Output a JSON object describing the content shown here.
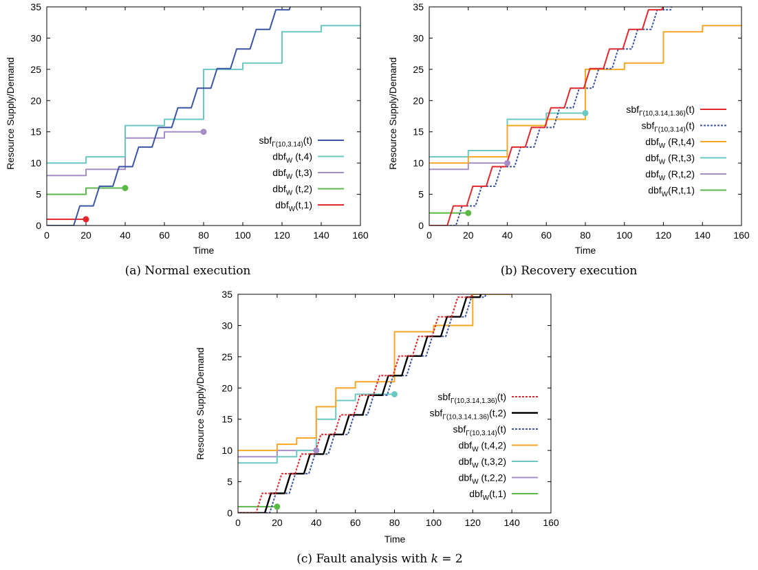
{
  "colors": {
    "red": "#e3262b",
    "blue": "#3a53a4",
    "cyan": "#69c9c0",
    "purple": "#a58dc5",
    "green": "#5ab947",
    "orange": "#f5a623",
    "black": "#000000"
  },
  "chart_data": [
    {
      "id": "a",
      "type": "line",
      "title": "",
      "caption": "(a) Normal execution",
      "xlabel": "Time",
      "ylabel": "Resource Supply/Demand",
      "xlim": [
        0,
        160
      ],
      "ylim": [
        0,
        35
      ],
      "xticks": [
        "0",
        "20",
        "40",
        "60",
        "80",
        "100",
        "120",
        "140",
        "160"
      ],
      "yticks": [
        "0",
        "5",
        "10",
        "15",
        "20",
        "25",
        "30",
        "35"
      ],
      "legend_position": "center-right",
      "series": [
        {
          "key": "sbf",
          "label": {
            "main": "sbf",
            "sub": "Γ(10,3.14)",
            "suffix": "(t)"
          },
          "color": "#3a53a4",
          "style": "solid",
          "width": 2,
          "kind": "sbf",
          "params": {
            "P": 10,
            "Q": 3.14,
            "d": 0
          }
        },
        {
          "key": "dbf4",
          "label": {
            "main": "dbf",
            "sub": "W",
            "suffix": " (t,4)"
          },
          "color": "#69c9c0",
          "style": "solid",
          "width": 2,
          "kind": "step",
          "points": [
            [
              0,
              10
            ],
            [
              20,
              10
            ],
            [
              20,
              11
            ],
            [
              40,
              11
            ],
            [
              40,
              16
            ],
            [
              60,
              16
            ],
            [
              60,
              17
            ],
            [
              80,
              17
            ],
            [
              80,
              25
            ],
            [
              100,
              25
            ],
            [
              100,
              26
            ],
            [
              120,
              26
            ],
            [
              120,
              31
            ],
            [
              140,
              31
            ],
            [
              140,
              32
            ],
            [
              160,
              32
            ]
          ]
        },
        {
          "key": "dbf3",
          "label": {
            "main": "dbf",
            "sub": "W",
            "suffix": " (t,3)"
          },
          "color": "#a58dc5",
          "style": "solid",
          "width": 2,
          "kind": "step",
          "points": [
            [
              0,
              8
            ],
            [
              20,
              8
            ],
            [
              20,
              9
            ],
            [
              40,
              9
            ],
            [
              40,
              14
            ],
            [
              60,
              14
            ],
            [
              60,
              15
            ],
            [
              80,
              15
            ]
          ],
          "end_marker": [
            80,
            15
          ]
        },
        {
          "key": "dbf2",
          "label": {
            "main": "dbf",
            "sub": "W",
            "suffix": " (t,2)"
          },
          "color": "#5ab947",
          "style": "solid",
          "width": 2,
          "kind": "step",
          "points": [
            [
              0,
              5
            ],
            [
              20,
              5
            ],
            [
              20,
              6
            ],
            [
              40,
              6
            ]
          ],
          "end_marker": [
            40,
            6
          ]
        },
        {
          "key": "dbf1",
          "label": {
            "main": "dbf",
            "sub": "W",
            "suffix": "(t,1)"
          },
          "color": "#e3262b",
          "style": "solid",
          "width": 2,
          "kind": "step",
          "points": [
            [
              0,
              1
            ],
            [
              20,
              1
            ]
          ],
          "end_marker": [
            20,
            1
          ]
        }
      ]
    },
    {
      "id": "b",
      "type": "line",
      "title": "",
      "caption": "(b) Recovery execution",
      "xlabel": "Time",
      "ylabel": "Resource Supply/Demand",
      "xlim": [
        0,
        160
      ],
      "ylim": [
        0,
        35
      ],
      "xticks": [
        "0",
        "20",
        "40",
        "60",
        "80",
        "100",
        "120",
        "140",
        "160"
      ],
      "yticks": [
        "0",
        "5",
        "10",
        "15",
        "20",
        "25",
        "30",
        "35"
      ],
      "legend_position": "center-right",
      "series": [
        {
          "key": "sbfR",
          "label": {
            "main": "sbf",
            "sub": "Γ(10,3.14,1.36)",
            "suffix": "(t)"
          },
          "color": "#e3262b",
          "style": "solid",
          "width": 2,
          "kind": "sbf",
          "params": {
            "P": 10,
            "Q": 3.14,
            "d": -4.5
          }
        },
        {
          "key": "sbf",
          "label": {
            "main": "sbf",
            "sub": "Γ(10,3.14)",
            "suffix": "(t)"
          },
          "color": "#3a53a4",
          "style": "dashed",
          "width": 2,
          "kind": "sbf",
          "params": {
            "P": 10,
            "Q": 3.14,
            "d": 0
          }
        },
        {
          "key": "dbf4",
          "label": {
            "main": "dbf",
            "sub": "W",
            "suffix": " (R,t,4)"
          },
          "color": "#f5a623",
          "style": "solid",
          "width": 2,
          "kind": "step",
          "points": [
            [
              0,
              10
            ],
            [
              20,
              10
            ],
            [
              20,
              11
            ],
            [
              40,
              11
            ],
            [
              40,
              16
            ],
            [
              60,
              16
            ],
            [
              60,
              17
            ],
            [
              80,
              17
            ],
            [
              80,
              25
            ],
            [
              100,
              25
            ],
            [
              100,
              26
            ],
            [
              120,
              26
            ],
            [
              120,
              31
            ],
            [
              140,
              31
            ],
            [
              140,
              32
            ],
            [
              160,
              32
            ]
          ]
        },
        {
          "key": "dbf3",
          "label": {
            "main": "dbf",
            "sub": "W",
            "suffix": " (R,t,3)"
          },
          "color": "#69c9c0",
          "style": "solid",
          "width": 2,
          "kind": "step",
          "points": [
            [
              0,
              11
            ],
            [
              20,
              11
            ],
            [
              20,
              12
            ],
            [
              40,
              12
            ],
            [
              40,
              17
            ],
            [
              60,
              17
            ],
            [
              60,
              18
            ],
            [
              80,
              18
            ]
          ],
          "end_marker": [
            80,
            18
          ]
        },
        {
          "key": "dbf2",
          "label": {
            "main": "dbf",
            "sub": "W",
            "suffix": " (R,t,2)"
          },
          "color": "#a58dc5",
          "style": "solid",
          "width": 2,
          "kind": "step",
          "points": [
            [
              0,
              9
            ],
            [
              20,
              9
            ],
            [
              20,
              10
            ],
            [
              40,
              10
            ]
          ],
          "end_marker": [
            40,
            10
          ]
        },
        {
          "key": "dbf1",
          "label": {
            "main": "dbf",
            "sub": "W",
            "suffix": "(R,t,1)"
          },
          "color": "#5ab947",
          "style": "solid",
          "width": 2,
          "kind": "step",
          "points": [
            [
              0,
              2
            ],
            [
              20,
              2
            ]
          ],
          "end_marker": [
            20,
            2
          ]
        }
      ]
    },
    {
      "id": "c",
      "type": "line",
      "title": "",
      "caption": "(c) Fault analysis with ",
      "caption_k": "k",
      "caption_rest": " = 2",
      "xlabel": "Time",
      "ylabel": "Resource Supply/Demand",
      "xlim": [
        0,
        160
      ],
      "ylim": [
        0,
        35
      ],
      "xticks": [
        "0",
        "20",
        "40",
        "60",
        "80",
        "100",
        "120",
        "140",
        "160"
      ],
      "yticks": [
        "0",
        "5",
        "10",
        "15",
        "20",
        "25",
        "30",
        "35"
      ],
      "legend_position": "center-right",
      "series": [
        {
          "key": "sbfR",
          "label": {
            "main": "sbf",
            "sub": "Γ(10,3.14,1.36)",
            "suffix": "(t)"
          },
          "color": "#e3262b",
          "style": "dashed",
          "width": 2,
          "kind": "sbf",
          "params": {
            "P": 10,
            "Q": 3.14,
            "d": -4.5
          }
        },
        {
          "key": "sbf2",
          "label": {
            "main": "sbf",
            "sub": "Γ(10,3.14,1.36)",
            "suffix": "(t,2)"
          },
          "color": "#000000",
          "style": "solid",
          "width": 2.4,
          "kind": "sbf",
          "params": {
            "P": 10,
            "Q": 3.14,
            "d": 0
          }
        },
        {
          "key": "sbf",
          "label": {
            "main": "sbf",
            "sub": "Γ(10,3.14)",
            "suffix": "(t)"
          },
          "color": "#3a53a4",
          "style": "dashed",
          "width": 2,
          "kind": "sbf",
          "params": {
            "P": 10,
            "Q": 3.14,
            "d": 2.5
          }
        },
        {
          "key": "dbf4",
          "label": {
            "main": "dbf",
            "sub": "W",
            "suffix": " (t,4,2)"
          },
          "color": "#f5a623",
          "style": "solid",
          "width": 2,
          "kind": "step",
          "points": [
            [
              0,
              10
            ],
            [
              20,
              10
            ],
            [
              20,
              11
            ],
            [
              30,
              11
            ],
            [
              30,
              12
            ],
            [
              40,
              12
            ],
            [
              40,
              17
            ],
            [
              50,
              17
            ],
            [
              50,
              20
            ],
            [
              60,
              20
            ],
            [
              60,
              21
            ],
            [
              80,
              21
            ],
            [
              80,
              29
            ],
            [
              100,
              29
            ],
            [
              100,
              30
            ],
            [
              120,
              30
            ],
            [
              120,
              35
            ],
            [
              140,
              35
            ]
          ]
        },
        {
          "key": "dbf3",
          "label": {
            "main": "dbf",
            "sub": "W",
            "suffix": " (t,3,2)"
          },
          "color": "#69c9c0",
          "style": "solid",
          "width": 2,
          "kind": "step",
          "points": [
            [
              0,
              8
            ],
            [
              20,
              8
            ],
            [
              20,
              9
            ],
            [
              30,
              9
            ],
            [
              30,
              10
            ],
            [
              40,
              10
            ],
            [
              40,
              15
            ],
            [
              50,
              15
            ],
            [
              50,
              18
            ],
            [
              60,
              18
            ],
            [
              60,
              19
            ],
            [
              80,
              19
            ]
          ],
          "end_marker": [
            80,
            19
          ]
        },
        {
          "key": "dbf2",
          "label": {
            "main": "dbf",
            "sub": "W",
            "suffix": " (t,2,2)"
          },
          "color": "#a58dc5",
          "style": "solid",
          "width": 2,
          "kind": "step",
          "points": [
            [
              0,
              9
            ],
            [
              20,
              9
            ],
            [
              20,
              10
            ],
            [
              40,
              10
            ]
          ],
          "end_marker": [
            40,
            10
          ]
        },
        {
          "key": "dbf1",
          "label": {
            "main": "dbf",
            "sub": "W",
            "suffix": "(t,1)"
          },
          "color": "#5ab947",
          "style": "solid",
          "width": 2,
          "kind": "step",
          "points": [
            [
              0,
              1
            ],
            [
              20,
              1
            ]
          ],
          "end_marker": [
            20,
            1
          ]
        }
      ]
    }
  ]
}
